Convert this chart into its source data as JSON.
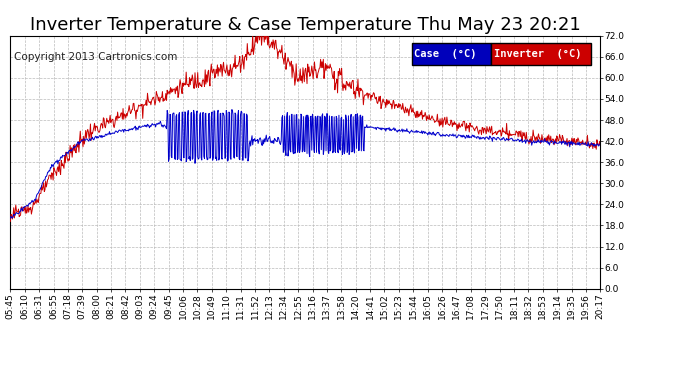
{
  "title": "Inverter Temperature & Case Temperature Thu May 23 20:21",
  "copyright": "Copyright 2013 Cartronics.com",
  "legend_case_label": "Case  (°C)",
  "legend_inverter_label": "Inverter  (°C)",
  "case_color": "#0000cc",
  "inverter_color": "#cc0000",
  "legend_case_bg": "#0000bb",
  "legend_inverter_bg": "#cc0000",
  "ylim": [
    0.0,
    72.0
  ],
  "yticks": [
    0.0,
    6.0,
    12.0,
    18.0,
    24.0,
    30.0,
    36.0,
    42.0,
    48.0,
    54.0,
    60.0,
    66.0,
    72.0
  ],
  "xtick_labels": [
    "05:45",
    "06:10",
    "06:31",
    "06:55",
    "07:18",
    "07:39",
    "08:00",
    "08:21",
    "08:42",
    "09:03",
    "09:24",
    "09:45",
    "10:06",
    "10:28",
    "10:49",
    "11:10",
    "11:31",
    "11:52",
    "12:13",
    "12:34",
    "12:55",
    "13:16",
    "13:37",
    "13:58",
    "14:20",
    "14:41",
    "15:02",
    "15:23",
    "15:44",
    "16:05",
    "16:26",
    "16:47",
    "17:08",
    "17:29",
    "17:50",
    "18:11",
    "18:32",
    "18:53",
    "19:14",
    "19:35",
    "19:56",
    "20:17"
  ],
  "bg_color": "#ffffff",
  "grid_color": "#bbbbbb",
  "title_fontsize": 13,
  "copyright_fontsize": 7.5,
  "tick_fontsize": 6.5
}
